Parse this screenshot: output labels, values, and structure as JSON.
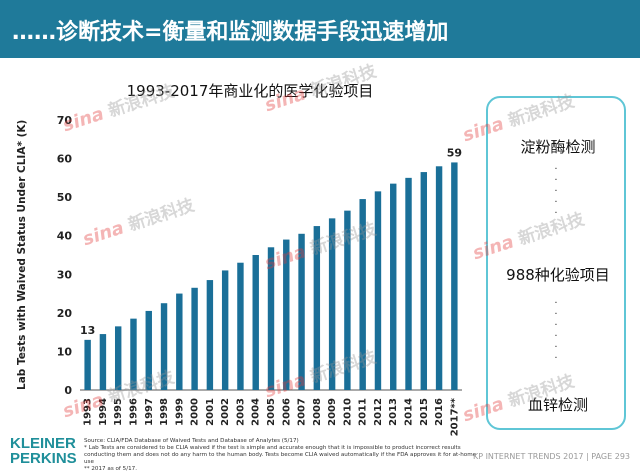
{
  "page": {
    "title": "……诊断技术=衡量和监测数据手段迅速增加",
    "brand": {
      "line1": "KLEINER",
      "line2": "PERKINS"
    },
    "footer": {
      "source": "Source: CLIA/FDA Database of Waived Tests and Database of Analytes (5/17)",
      "note1": "* Lab Tests are considered to be CLIA waived if the test is simple and accurate enough that it is impossible to product incorrect results conducting them and does not do any harm to the human body. Tests become CLIA waived automatically if the FDA approves it for at-home use",
      "note2": "** 2017 as of 5/17.",
      "report": "KP INTERNET TRENDS 2017  |  PAGE 293"
    },
    "side_panel": {
      "top": "淀粉酶检测",
      "middle": "988种化验项目",
      "bottom": "血锌检测"
    },
    "watermark": {
      "logo": "sina",
      "text": "新浪科技"
    },
    "colors": {
      "title_bar": "#1f7a9a",
      "bar": "#1a6f98",
      "panel_border": "#5fc6d6"
    }
  },
  "chart_data": {
    "type": "bar",
    "title": "1993-2017年商业化的医学化验项目",
    "ylabel": "Lab Tests with Waived Status Under CLIA* (K)",
    "xlabel": "",
    "ylim": [
      0,
      70
    ],
    "yticks": [
      0,
      10,
      20,
      30,
      40,
      50,
      60,
      70
    ],
    "grid": false,
    "categories": [
      "1993",
      "1994",
      "1995",
      "1996",
      "1997",
      "1998",
      "1999",
      "2000",
      "2001",
      "2002",
      "2003",
      "2004",
      "2005",
      "2006",
      "2007",
      "2008",
      "2009",
      "2010",
      "2011",
      "2012",
      "2013",
      "2014",
      "2015",
      "2016",
      "2017**"
    ],
    "values": [
      13,
      14.5,
      16.5,
      18.5,
      20.5,
      22.5,
      25,
      26.5,
      28.5,
      31,
      33,
      35,
      37,
      39,
      40.5,
      42.5,
      44.5,
      46.5,
      49.5,
      51.5,
      53.5,
      55,
      56.5,
      58,
      59
    ],
    "data_labels": [
      {
        "index": 0,
        "text": "13"
      },
      {
        "index": 24,
        "text": "59"
      }
    ]
  }
}
